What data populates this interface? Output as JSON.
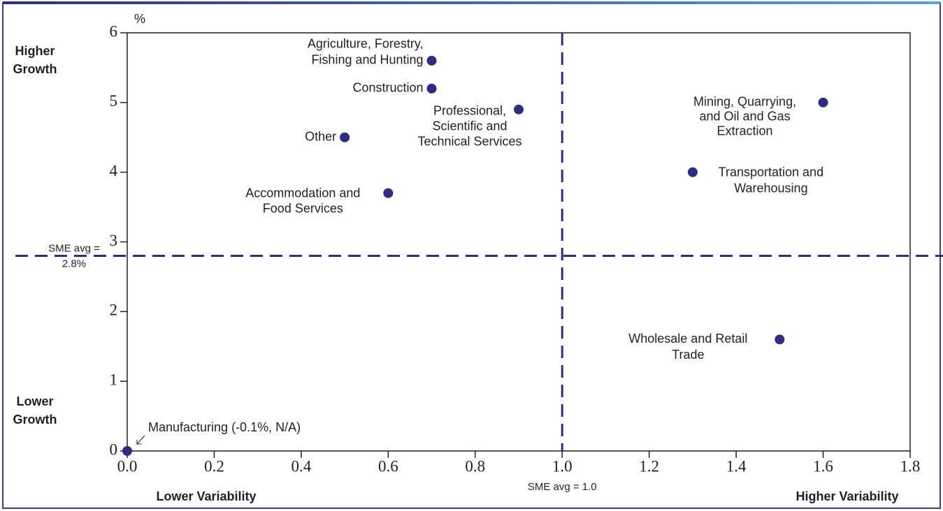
{
  "chart_data": {
    "type": "scatter",
    "y_unit": "%",
    "color": "#2e2d86",
    "points": [
      {
        "label": [
          "Agriculture, Forestry,",
          "Fishing and Hunting"
        ],
        "x": 0.7,
        "y": 5.6
      },
      {
        "label": [
          "Construction"
        ],
        "x": 0.7,
        "y": 5.2
      },
      {
        "label": [
          "Professional,",
          "Scientific and",
          "Technical Services"
        ],
        "x": 0.9,
        "y": 4.9
      },
      {
        "label": [
          "Other"
        ],
        "x": 0.5,
        "y": 4.5
      },
      {
        "label": [
          "Accommodation and",
          "Food Services"
        ],
        "x": 0.6,
        "y": 3.7
      },
      {
        "label": [
          "Mining, Quarrying,",
          "and Oil and Gas",
          "Extraction"
        ],
        "x": 1.6,
        "y": 5.0
      },
      {
        "label": [
          "Transportation and",
          "Warehousing"
        ],
        "x": 1.3,
        "y": 4.0
      },
      {
        "label": [
          "Wholesale and Retail",
          "Trade"
        ],
        "x": 1.5,
        "y": 1.6
      },
      {
        "label": [
          "Manufacturing (-0.1%, N/A)"
        ],
        "x": 0.0,
        "y": 0.0
      }
    ],
    "reference_lines": [
      {
        "axis": "x",
        "value": 1.0,
        "label": [
          "SME avg = 1.0"
        ]
      },
      {
        "axis": "y",
        "value": 2.8,
        "label": [
          "SME avg =",
          "2.8%"
        ]
      }
    ],
    "quadrant_labels": {
      "top_left": [
        "Higher",
        "Growth"
      ],
      "bottom_left": [
        "Lower",
        "Growth"
      ],
      "x_left": "Lower Variability",
      "x_right": "Higher Variability"
    },
    "xlim": [
      0,
      1.8
    ],
    "ylim": [
      0,
      6
    ],
    "xticks": [
      {
        "value": 0,
        "label": "0.0"
      },
      {
        "value": 0.2,
        "label": "0.2"
      },
      {
        "value": 0.4,
        "label": "0.4"
      },
      {
        "value": 0.6,
        "label": "0.6"
      },
      {
        "value": 0.8,
        "label": "0.8"
      },
      {
        "value": 1.0,
        "label": "1.0"
      },
      {
        "value": 1.2,
        "label": "1.2"
      },
      {
        "value": 1.4,
        "label": "1.4"
      },
      {
        "value": 1.6,
        "label": "1.6"
      },
      {
        "value": 1.8,
        "label": "1.8"
      }
    ],
    "yticks": [
      0,
      1,
      2,
      3,
      4,
      5,
      6
    ]
  }
}
